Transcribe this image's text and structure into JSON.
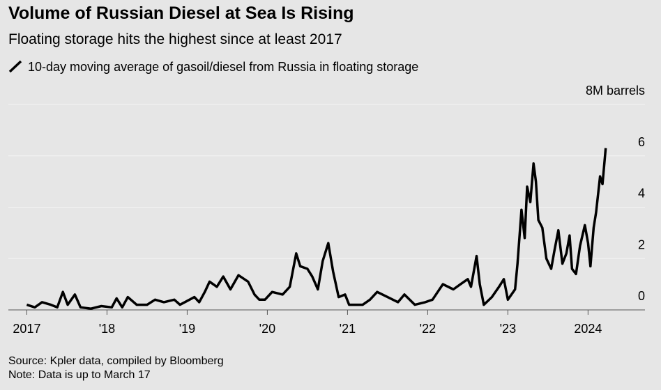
{
  "chart_data": {
    "type": "line",
    "title": "Volume of Russian Diesel at Sea Is Rising",
    "subtitle": "Floating storage hits the highest since at least 2017",
    "source": "Source: Kpler data, compiled by Bloomberg",
    "note": "Note: Data is up to March 17",
    "x": [
      2017.0,
      2017.1,
      2017.19,
      2017.3,
      2017.38,
      2017.45,
      2017.51,
      2017.6,
      2017.67,
      2017.8,
      2017.93,
      2018.06,
      2018.12,
      2018.19,
      2018.26,
      2018.37,
      2018.5,
      2018.6,
      2018.71,
      2018.84,
      2018.91,
      2018.97,
      2019.09,
      2019.15,
      2019.22,
      2019.28,
      2019.37,
      2019.45,
      2019.54,
      2019.64,
      2019.76,
      2019.84,
      2019.9,
      2019.97,
      2020.06,
      2020.19,
      2020.28,
      2020.36,
      2020.41,
      2020.5,
      2020.56,
      2020.63,
      2020.69,
      2020.76,
      2020.82,
      2020.89,
      2020.97,
      2021.02,
      2021.19,
      2021.28,
      2021.37,
      2021.5,
      2021.63,
      2021.71,
      2021.84,
      2021.97,
      2022.06,
      2022.19,
      2022.32,
      2022.41,
      2022.5,
      2022.54,
      2022.61,
      2022.65,
      2022.7,
      2022.8,
      2022.89,
      2022.95,
      2023.0,
      2023.09,
      2023.12,
      2023.17,
      2023.21,
      2023.24,
      2023.28,
      2023.32,
      2023.35,
      2023.38,
      2023.43,
      2023.48,
      2023.54,
      2023.58,
      2023.63,
      2023.68,
      2023.73,
      2023.77,
      2023.8,
      2023.85,
      2023.9,
      2023.96,
      2024.0,
      2024.03,
      2024.07,
      2024.1,
      2024.15,
      2024.18,
      2024.22
    ],
    "series": [
      {
        "name": "10-day moving average of gasoil/diesel from Russia in floating storage",
        "color": "#000000",
        "values": [
          0.2,
          0.1,
          0.3,
          0.2,
          0.1,
          0.7,
          0.2,
          0.6,
          0.1,
          0.05,
          0.15,
          0.1,
          0.45,
          0.1,
          0.5,
          0.2,
          0.2,
          0.4,
          0.3,
          0.4,
          0.2,
          0.3,
          0.5,
          0.3,
          0.7,
          1.1,
          0.9,
          1.3,
          0.8,
          1.35,
          1.1,
          0.6,
          0.4,
          0.4,
          0.7,
          0.6,
          0.9,
          2.2,
          1.7,
          1.6,
          1.3,
          0.8,
          1.9,
          2.6,
          1.5,
          0.5,
          0.6,
          0.2,
          0.2,
          0.4,
          0.7,
          0.5,
          0.3,
          0.6,
          0.2,
          0.3,
          0.4,
          1.0,
          0.8,
          1.0,
          1.2,
          0.9,
          2.1,
          1.0,
          0.2,
          0.5,
          0.9,
          1.2,
          0.4,
          0.8,
          1.8,
          3.9,
          2.8,
          4.8,
          4.2,
          5.7,
          5.0,
          3.5,
          3.2,
          2.0,
          1.6,
          2.3,
          3.1,
          1.8,
          2.2,
          2.9,
          1.6,
          1.4,
          2.5,
          3.3,
          2.6,
          1.7,
          3.2,
          3.8,
          5.2,
          4.9,
          6.3
        ]
      }
    ],
    "xlim": [
      2016.77,
      2024.71
    ],
    "xticks": [
      2017,
      {
        "value": 2018,
        "label": "'18"
      },
      {
        "value": 2019,
        "label": "'19"
      },
      {
        "value": 2020,
        "label": "'20"
      },
      {
        "value": 2021,
        "label": "'21"
      },
      {
        "value": 2022,
        "label": "'22"
      },
      {
        "value": 2023,
        "label": "'23"
      },
      2024
    ],
    "ylim": [
      0,
      8
    ],
    "yticks": [
      0,
      2,
      4,
      6,
      {
        "value": 8,
        "label": "8M barrels"
      }
    ],
    "grid": true
  }
}
